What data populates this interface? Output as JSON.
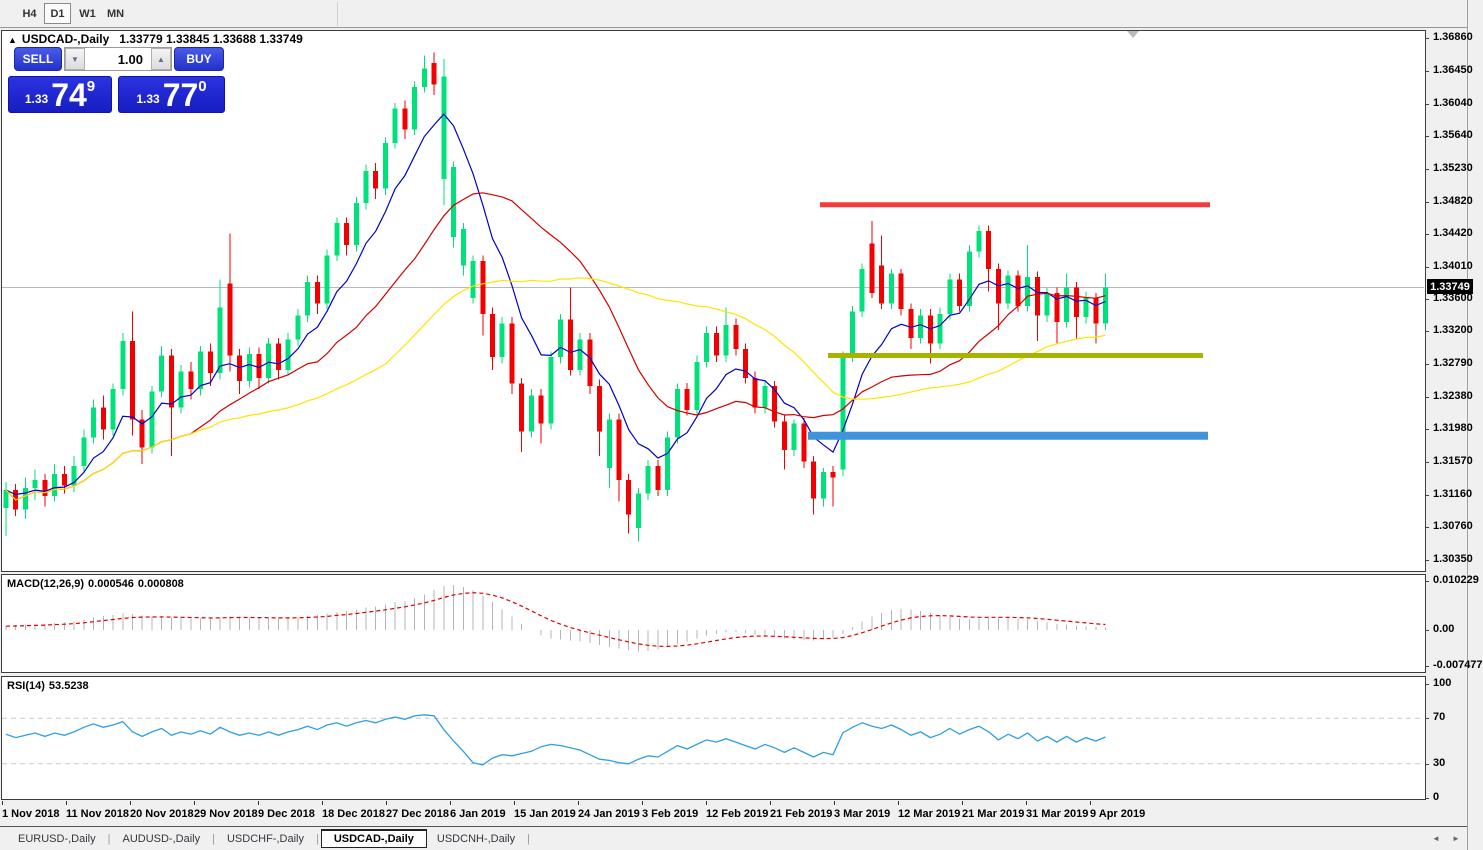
{
  "toolbar": {
    "timeframes": [
      {
        "label": "H4",
        "active": false
      },
      {
        "label": "D1",
        "active": true
      },
      {
        "label": "W1",
        "active": false
      },
      {
        "label": "MN",
        "active": false
      }
    ]
  },
  "chart_header": {
    "collapse_icon": "▲",
    "symbol_label": "USDCAD-,Daily",
    "ohlc": "1.33779 1.33845 1.33688 1.33749"
  },
  "trade_panel": {
    "sell_label": "SELL",
    "buy_label": "BUY",
    "volume": "1.00",
    "spinner_down_icon": "▼",
    "spinner_up_icon": "▲",
    "sell_price_small": "1.33",
    "sell_price_big": "74",
    "sell_price_sup": "9",
    "buy_price_small": "1.33",
    "buy_price_big": "77",
    "buy_price_sup": "0"
  },
  "price_axis": {
    "labels": [
      "1.36860",
      "1.36450",
      "1.36040",
      "1.35640",
      "1.35230",
      "1.34820",
      "1.34420",
      "1.34010",
      "1.33600",
      "1.33200",
      "1.32790",
      "1.32380",
      "1.31980",
      "1.31570",
      "1.31160",
      "1.30760",
      "1.30350"
    ],
    "current_badge": "1.33749"
  },
  "macd_panel": {
    "name": "MACD(12,26,9)",
    "value": "0.000546",
    "signal_value": "0.000808",
    "axis_labels": [
      "0.010229",
      "0.00",
      "-0.007477"
    ]
  },
  "rsi_panel": {
    "name": "RSI(14)",
    "value": "53.5238",
    "axis_labels": [
      "100",
      "70",
      "30",
      "0"
    ]
  },
  "dates": [
    "1 Nov 2018",
    "11 Nov 2018",
    "20 Nov 2018",
    "29 Nov 2018",
    "9 Dec 2018",
    "18 Dec 2018",
    "27 Dec 2018",
    "6 Jan 2019",
    "15 Jan 2019",
    "24 Jan 2019",
    "3 Feb 2019",
    "12 Feb 2019",
    "21 Feb 2019",
    "3 Mar 2019",
    "12 Mar 2019",
    "21 Mar 2019",
    "31 Mar 2019",
    "9 Apr 2019"
  ],
  "bottom_tabs": {
    "tabs": [
      {
        "label": "EURUSD-,Daily",
        "active": false
      },
      {
        "label": "AUDUSD-,Daily",
        "active": false
      },
      {
        "label": "USDCHF-,Daily",
        "active": false
      },
      {
        "label": "USDCAD-,Daily",
        "active": true
      },
      {
        "label": "USDCNH-,Daily",
        "active": false
      }
    ],
    "scroll_left_icon": "◄",
    "scroll_right_icon": "►"
  },
  "colors": {
    "bull": "#00E17A",
    "bear": "#F30000",
    "ma_fast_blue": "#0000C8",
    "ma_mid_red": "#D00000",
    "ma_slow_yellow": "#FFE400",
    "macd_bar": "#B4B4B4",
    "macd_signal": "#E00000",
    "rsi_line": "#2F9FE0",
    "ray_red": "#F23B3B",
    "ray_olive": "#A6B400",
    "ray_blue": "#3E93DB",
    "current_price_line": "#B8B8B8",
    "accent_blue": "#2B3FD6"
  },
  "chart_data": [
    {
      "type": "candlestick",
      "title": "USDCAD-,Daily",
      "ylim": [
        1.3035,
        1.3686
      ],
      "current_price": 1.33749,
      "open": 1.33779,
      "high": 1.33845,
      "low": 1.33688,
      "close": 1.33749,
      "overlays": {
        "ema_fast_period": 8,
        "sma_mid_period": 20,
        "sma_slow_period": 40
      },
      "hlines": [
        {
          "name": "resistance-ray-red",
          "price": 1.3478,
          "x1": 820,
          "x2": 1210,
          "color": "#F23B3B",
          "width": 5
        },
        {
          "name": "support-ray-olive",
          "price": 1.329,
          "x1": 828,
          "x2": 1203,
          "color": "#A6B400",
          "width": 5
        },
        {
          "name": "support-ray-blue",
          "price": 1.319,
          "x1": 808,
          "x2": 1208,
          "color": "#3E93DB",
          "width": 8
        }
      ],
      "candles": [
        [
          1.31,
          1.3132,
          1.3065,
          1.3122
        ],
        [
          1.3122,
          1.313,
          1.309,
          1.3098
        ],
        [
          1.3098,
          1.3138,
          1.3086,
          1.3125
        ],
        [
          1.3125,
          1.3148,
          1.311,
          1.3135
        ],
        [
          1.3135,
          1.3142,
          1.3102,
          1.3115
        ],
        [
          1.3115,
          1.3155,
          1.3108,
          1.3142
        ],
        [
          1.3142,
          1.3152,
          1.3118,
          1.3128
        ],
        [
          1.3128,
          1.3165,
          1.312,
          1.3152
        ],
        [
          1.3152,
          1.3198,
          1.3145,
          1.3188
        ],
        [
          1.3188,
          1.3235,
          1.318,
          1.3225
        ],
        [
          1.3225,
          1.324,
          1.3185,
          1.3198
        ],
        [
          1.3198,
          1.3255,
          1.319,
          1.3248
        ],
        [
          1.3248,
          1.3318,
          1.324,
          1.3308
        ],
        [
          1.3308,
          1.3345,
          1.319,
          1.321
        ],
        [
          1.321,
          1.3222,
          1.3155,
          1.3175
        ],
        [
          1.3175,
          1.3252,
          1.3168,
          1.3245
        ],
        [
          1.3245,
          1.3302,
          1.3238,
          1.329
        ],
        [
          1.329,
          1.3298,
          1.3165,
          1.3225
        ],
        [
          1.3225,
          1.3278,
          1.3218,
          1.327
        ],
        [
          1.327,
          1.3282,
          1.3235,
          1.3248
        ],
        [
          1.3248,
          1.3302,
          1.324,
          1.3295
        ],
        [
          1.3295,
          1.3305,
          1.3252,
          1.3268
        ],
        [
          1.3268,
          1.3385,
          1.326,
          1.335
        ],
        [
          1.338,
          1.3442,
          1.327,
          1.329
        ],
        [
          1.329,
          1.3298,
          1.3242,
          1.3258
        ],
        [
          1.3258,
          1.33,
          1.325,
          1.3292
        ],
        [
          1.3292,
          1.33,
          1.3248,
          1.3262
        ],
        [
          1.3262,
          1.3312,
          1.3255,
          1.3305
        ],
        [
          1.3305,
          1.3312,
          1.326,
          1.3272
        ],
        [
          1.3272,
          1.3318,
          1.3265,
          1.331
        ],
        [
          1.331,
          1.3348,
          1.3302,
          1.334
        ],
        [
          1.334,
          1.339,
          1.3332,
          1.3382
        ],
        [
          1.3382,
          1.339,
          1.3342,
          1.3355
        ],
        [
          1.3355,
          1.3422,
          1.3348,
          1.3415
        ],
        [
          1.3415,
          1.3462,
          1.3408,
          1.3455
        ],
        [
          1.3455,
          1.3462,
          1.3415,
          1.3428
        ],
        [
          1.3428,
          1.3488,
          1.342,
          1.348
        ],
        [
          1.348,
          1.3528,
          1.3472,
          1.352
        ],
        [
          1.352,
          1.353,
          1.3485,
          1.3498
        ],
        [
          1.3498,
          1.3562,
          1.349,
          1.3555
        ],
        [
          1.3555,
          1.3605,
          1.3548,
          1.3598
        ],
        [
          1.3598,
          1.3608,
          1.356,
          1.3572
        ],
        [
          1.3572,
          1.3632,
          1.3565,
          1.3625
        ],
        [
          1.3625,
          1.3664,
          1.3618,
          1.3648
        ],
        [
          1.3655,
          1.3668,
          1.3615,
          1.3628
        ],
        [
          1.351,
          1.366,
          1.3478,
          1.3638
        ],
        [
          1.3438,
          1.3532,
          1.3425,
          1.3525
        ],
        [
          1.3402,
          1.3455,
          1.339,
          1.3448
        ],
        [
          1.3362,
          1.3415,
          1.3355,
          1.3408
        ],
        [
          1.3408,
          1.3415,
          1.3315,
          1.3342
        ],
        [
          1.3342,
          1.335,
          1.3272,
          1.3288
        ],
        [
          1.3288,
          1.3338,
          1.328,
          1.333
        ],
        [
          1.333,
          1.3338,
          1.3242,
          1.3255
        ],
        [
          1.3255,
          1.3262,
          1.317,
          1.3195
        ],
        [
          1.3195,
          1.3248,
          1.3188,
          1.324
        ],
        [
          1.324,
          1.3248,
          1.318,
          1.3205
        ],
        [
          1.3205,
          1.3295,
          1.3198,
          1.3288
        ],
        [
          1.3288,
          1.3342,
          1.328,
          1.3335
        ],
        [
          1.3335,
          1.3375,
          1.3265,
          1.3272
        ],
        [
          1.3272,
          1.3318,
          1.3265,
          1.331
        ],
        [
          1.331,
          1.3318,
          1.3242,
          1.3252
        ],
        [
          1.3252,
          1.326,
          1.3165,
          1.3195
        ],
        [
          1.315,
          1.3218,
          1.3125,
          1.321
        ],
        [
          1.321,
          1.3218,
          1.3108,
          1.3135
        ],
        [
          1.3135,
          1.3142,
          1.3068,
          1.3092
        ],
        [
          1.3075,
          1.3125,
          1.3058,
          1.3118
        ],
        [
          1.3118,
          1.316,
          1.311,
          1.3152
        ],
        [
          1.3152,
          1.316,
          1.3115,
          1.3122
        ],
        [
          1.3122,
          1.3195,
          1.3115,
          1.3188
        ],
        [
          1.3188,
          1.3255,
          1.318,
          1.3248
        ],
        [
          1.3248,
          1.3256,
          1.3215,
          1.3222
        ],
        [
          1.3222,
          1.329,
          1.3215,
          1.3282
        ],
        [
          1.3282,
          1.3326,
          1.3275,
          1.3318
        ],
        [
          1.3318,
          1.3326,
          1.3282,
          1.329
        ],
        [
          1.329,
          1.335,
          1.3282,
          1.3328
        ],
        [
          1.3328,
          1.3336,
          1.329,
          1.3298
        ],
        [
          1.3298,
          1.3305,
          1.3255,
          1.3262
        ],
        [
          1.3262,
          1.327,
          1.3218,
          1.3225
        ],
        [
          1.3225,
          1.3258,
          1.3218,
          1.3252
        ],
        [
          1.3252,
          1.3258,
          1.32,
          1.3208
        ],
        [
          1.3208,
          1.3215,
          1.3148,
          1.3172
        ],
        [
          1.3172,
          1.321,
          1.3165,
          1.3205
        ],
        [
          1.3205,
          1.3212,
          1.315,
          1.3158
        ],
        [
          1.3158,
          1.3165,
          1.3092,
          1.3112
        ],
        [
          1.3112,
          1.315,
          1.3102,
          1.3145
        ],
        [
          1.3145,
          1.3152,
          1.3102,
          1.3138
        ],
        [
          1.3148,
          1.3295,
          1.314,
          1.329
        ],
        [
          1.329,
          1.3352,
          1.3282,
          1.3345
        ],
        [
          1.3345,
          1.3405,
          1.3338,
          1.3398
        ],
        [
          1.343,
          1.3458,
          1.3362,
          1.3368
        ],
        [
          1.3402,
          1.344,
          1.3348,
          1.3355
        ],
        [
          1.3355,
          1.3398,
          1.3348,
          1.3392
        ],
        [
          1.3392,
          1.3398,
          1.334,
          1.3348
        ],
        [
          1.3348,
          1.3355,
          1.3298,
          1.3312
        ],
        [
          1.3312,
          1.3348,
          1.3305,
          1.334
        ],
        [
          1.334,
          1.3348,
          1.328,
          1.3305
        ],
        [
          1.3305,
          1.335,
          1.3298,
          1.3342
        ],
        [
          1.3342,
          1.3392,
          1.3335,
          1.3385
        ],
        [
          1.3385,
          1.3392,
          1.3345,
          1.3352
        ],
        [
          1.3352,
          1.3428,
          1.3345,
          1.342
        ],
        [
          1.342,
          1.3452,
          1.3412,
          1.3445
        ],
        [
          1.3445,
          1.3452,
          1.337,
          1.3398
        ],
        [
          1.3398,
          1.3405,
          1.3322,
          1.3355
        ],
        [
          1.3355,
          1.3396,
          1.3348,
          1.339
        ],
        [
          1.339,
          1.3396,
          1.3345,
          1.3352
        ],
        [
          1.3352,
          1.3428,
          1.3345,
          1.3388
        ],
        [
          1.3388,
          1.3395,
          1.3308,
          1.334
        ],
        [
          1.334,
          1.3374,
          1.3332,
          1.3368
        ],
        [
          1.3368,
          1.3375,
          1.3305,
          1.3332
        ],
        [
          1.3332,
          1.3392,
          1.3325,
          1.3375
        ],
        [
          1.3375,
          1.3382,
          1.331,
          1.3338
        ],
        [
          1.3338,
          1.337,
          1.333,
          1.3362
        ],
        [
          1.3362,
          1.3368,
          1.3305,
          1.333
        ],
        [
          1.333,
          1.3392,
          1.3322,
          1.33749
        ]
      ]
    },
    {
      "type": "bar",
      "name": "MACD",
      "params": [
        12,
        26,
        9
      ],
      "last_value": 0.000546,
      "last_signal": 0.000808,
      "axis": [
        0.010229,
        0,
        -0.007477
      ],
      "signal_period": 9,
      "values": [
        0.0008,
        0.001,
        0.0011,
        0.0012,
        0.0013,
        0.0015,
        0.0016,
        0.0018,
        0.0022,
        0.0026,
        0.0029,
        0.0031,
        0.0034,
        0.0033,
        0.003,
        0.0028,
        0.0028,
        0.0026,
        0.0025,
        0.0024,
        0.0024,
        0.0023,
        0.0026,
        0.0028,
        0.0027,
        0.0026,
        0.0025,
        0.0025,
        0.0024,
        0.0025,
        0.0026,
        0.0029,
        0.0031,
        0.0034,
        0.0038,
        0.004,
        0.0043,
        0.0047,
        0.0049,
        0.0053,
        0.0058,
        0.0061,
        0.0067,
        0.0074,
        0.0083,
        0.0092,
        0.0094,
        0.009,
        0.0083,
        0.0072,
        0.0058,
        0.0043,
        0.0028,
        0.0013,
        0.0,
        -0.0012,
        -0.0018,
        -0.002,
        -0.0022,
        -0.0024,
        -0.0027,
        -0.0031,
        -0.0035,
        -0.0039,
        -0.0043,
        -0.0045,
        -0.0044,
        -0.0041,
        -0.0036,
        -0.003,
        -0.0024,
        -0.0018,
        -0.0012,
        -0.0008,
        -0.0005,
        -0.0004,
        -0.0006,
        -0.0009,
        -0.0012,
        -0.0015,
        -0.0018,
        -0.002,
        -0.0021,
        -0.0022,
        -0.002,
        -0.0017,
        -0.0008,
        0.0006,
        0.0018,
        0.0028,
        0.0036,
        0.0042,
        0.0044,
        0.0043,
        0.004,
        0.0036,
        0.0031,
        0.0027,
        0.0024,
        0.0023,
        0.0024,
        0.0026,
        0.0027,
        0.0026,
        0.0024,
        0.0022,
        0.0019,
        0.0016,
        0.0013,
        0.0011,
        0.0009,
        0.0007,
        0.0006,
        0.000546
      ]
    },
    {
      "type": "line",
      "name": "RSI",
      "period": 14,
      "last_value": 53.5238,
      "levels": [
        70,
        30
      ],
      "axis": [
        100,
        70,
        30,
        0
      ],
      "values": [
        56,
        53,
        55,
        57,
        54,
        57,
        55,
        58,
        62,
        65,
        62,
        64,
        67,
        58,
        54,
        58,
        61,
        55,
        58,
        56,
        59,
        56,
        62,
        58,
        55,
        57,
        55,
        58,
        55,
        58,
        60,
        63,
        60,
        64,
        66,
        63,
        66,
        68,
        66,
        69,
        71,
        69,
        72,
        73,
        72,
        60,
        50,
        41,
        31,
        29,
        35,
        38,
        37,
        39,
        41,
        45,
        47,
        46,
        44,
        42,
        38,
        34,
        33,
        31,
        30,
        34,
        37,
        36,
        41,
        46,
        43,
        47,
        51,
        49,
        52,
        49,
        46,
        43,
        47,
        44,
        40,
        44,
        40,
        36,
        40,
        38,
        57,
        62,
        66,
        63,
        61,
        64,
        60,
        55,
        58,
        53,
        56,
        61,
        56,
        60,
        63,
        58,
        51,
        56,
        52,
        57,
        50,
        54,
        49,
        54,
        49,
        53,
        50,
        53.52
      ]
    }
  ]
}
